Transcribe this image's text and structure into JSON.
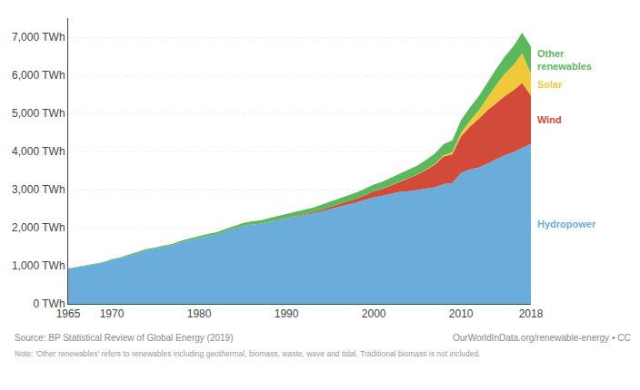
{
  "chart_data": {
    "type": "area",
    "stacked": true,
    "grid": true,
    "x": [
      1965,
      1966,
      1967,
      1968,
      1969,
      1970,
      1971,
      1972,
      1973,
      1974,
      1975,
      1976,
      1977,
      1978,
      1979,
      1980,
      1981,
      1982,
      1983,
      1984,
      1985,
      1986,
      1987,
      1988,
      1989,
      1990,
      1991,
      1992,
      1993,
      1994,
      1995,
      1996,
      1997,
      1998,
      1999,
      2000,
      2001,
      2002,
      2003,
      2004,
      2005,
      2006,
      2007,
      2008,
      2009,
      2010,
      2011,
      2012,
      2013,
      2014,
      2015,
      2016,
      2017,
      2018
    ],
    "series": [
      {
        "name": "Hydropower",
        "color": "#6aadda",
        "values": [
          920,
          960,
          990,
          1030,
          1080,
          1150,
          1200,
          1270,
          1340,
          1410,
          1450,
          1500,
          1540,
          1620,
          1680,
          1730,
          1780,
          1820,
          1900,
          1980,
          2040,
          2080,
          2100,
          2150,
          2200,
          2250,
          2290,
          2330,
          2370,
          2430,
          2490,
          2560,
          2610,
          2660,
          2730,
          2800,
          2840,
          2890,
          2940,
          2960,
          2990,
          3020,
          3060,
          3140,
          3170,
          3440,
          3530,
          3580,
          3680,
          3800,
          3900,
          3980,
          4100,
          4200
        ]
      },
      {
        "name": "Wind",
        "color": "#d14a3a",
        "values": [
          0,
          0,
          0,
          0,
          0,
          0,
          0,
          0,
          0,
          0,
          0,
          0,
          0,
          0,
          0,
          0,
          0,
          0,
          0,
          0,
          1,
          2,
          3,
          4,
          6,
          10,
          15,
          20,
          28,
          38,
          50,
          65,
          80,
          100,
          120,
          150,
          180,
          220,
          270,
          330,
          400,
          500,
          600,
          730,
          760,
          960,
          1120,
          1270,
          1400,
          1460,
          1550,
          1630,
          1700,
          1270
        ]
      },
      {
        "name": "Solar",
        "color": "#f0c93a",
        "values": [
          0,
          0,
          0,
          0,
          0,
          0,
          0,
          0,
          0,
          0,
          0,
          0,
          0,
          0,
          0,
          0,
          0,
          0,
          0,
          0,
          0,
          0,
          0,
          0,
          0,
          0,
          0,
          0,
          0,
          0,
          0,
          0,
          0,
          0,
          0,
          1,
          1,
          2,
          3,
          5,
          8,
          12,
          18,
          28,
          50,
          90,
          150,
          220,
          340,
          480,
          590,
          660,
          780,
          580
        ]
      },
      {
        "name": "Other\nrenewables",
        "color": "#5cb85c",
        "values": [
          10,
          12,
          14,
          16,
          18,
          20,
          22,
          25,
          28,
          30,
          32,
          35,
          38,
          42,
          46,
          50,
          55,
          60,
          65,
          70,
          76,
          82,
          88,
          95,
          100,
          108,
          115,
          120,
          128,
          135,
          142,
          150,
          158,
          165,
          172,
          180,
          190,
          200,
          210,
          220,
          230,
          250,
          270,
          290,
          310,
          330,
          350,
          370,
          390,
          420,
          450,
          490,
          540,
          700
        ]
      }
    ],
    "xlim": [
      1965,
      2018
    ],
    "xticks": [
      1965,
      1970,
      1980,
      1990,
      2000,
      2010,
      2018
    ],
    "ylim": [
      0,
      7500
    ],
    "yticks": [
      {
        "value": 0,
        "label": "0 TWh"
      },
      {
        "value": 1000,
        "label": "1,000 TWh"
      },
      {
        "value": 2000,
        "label": "2,000 TWh"
      },
      {
        "value": 3000,
        "label": "3,000 TWh"
      },
      {
        "value": 4000,
        "label": "4,000 TWh"
      },
      {
        "value": 5000,
        "label": "5,000 TWh"
      },
      {
        "value": 6000,
        "label": "6,000 TWh"
      },
      {
        "value": 7000,
        "label": "7,000 TWh"
      }
    ],
    "annotations": [
      "Source: BP Statistical Review of Global Energy (2019)",
      "OurWorldInData.org/renewable-energy • CC",
      "Note: 'Other renewables' refers to renewables including geothermal, biomass, waste, wave and tidal. Traditional biomass is not included."
    ]
  }
}
